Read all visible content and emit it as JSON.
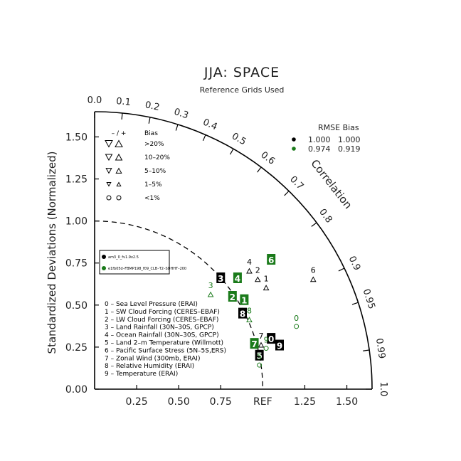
{
  "chart_data": {
    "type": "scatter",
    "title": "JJA: SPACE",
    "subtitle": "Reference Grids Used",
    "ylabel": "Standardized Deviations (Normalized)",
    "correlation_label": "Correlation",
    "ref_label": "REF",
    "x_ticks": [
      "0.25",
      "0.50",
      "0.75",
      "1.25",
      "1.50"
    ],
    "x_tick_values": [
      0.25,
      0.5,
      0.75,
      1.25,
      1.5
    ],
    "y_ticks": [
      "0.00",
      "0.25",
      "0.50",
      "0.75",
      "1.00",
      "1.25",
      "1.50"
    ],
    "y_tick_values": [
      0,
      0.25,
      0.5,
      0.75,
      1.0,
      1.25,
      1.5
    ],
    "corr_ticks": [
      "0.0",
      "0.1",
      "0.2",
      "0.3",
      "0.4",
      "0.5",
      "0.6",
      "0.7",
      "0.8",
      "0.9",
      "0.95",
      "0.99",
      "1.0"
    ],
    "corr_tick_values": [
      0,
      0.1,
      0.2,
      0.3,
      0.4,
      0.5,
      0.6,
      0.7,
      0.8,
      0.9,
      0.95,
      0.99,
      1.0
    ],
    "max_std": 1.65,
    "rmse_bias": {
      "header": "RMSE  Bias",
      "rows": [
        {
          "rmse": "1.000",
          "bias": "1.000",
          "color": "#000000"
        },
        {
          "rmse": "0.974",
          "bias": "0.919",
          "color": "#1a7a1a"
        }
      ]
    },
    "bias_legend": {
      "header_sign": "– / +",
      "header_label": "Bias",
      "rows": [
        ">20%",
        "10–20%",
        "5–10%",
        "1–5%",
        "<1%"
      ]
    },
    "models": [
      {
        "name": "am3_0_fv1.9x2.5",
        "color": "#000000"
      },
      {
        "name": "e1fb05d–FBMP198_f09_CLB–T2–SDHHT–200",
        "color": "#1a7a1a"
      }
    ],
    "variables": [
      "0 – Sea Level Pressure (ERAI)",
      "1 – SW Cloud Forcing (CERES–EBAF)",
      "2 – LW Cloud Forcing (CERES–EBAF)",
      "3 – Land Rainfall (30N–30S, GPCP)",
      "4 – Ocean Rainfall (30N–30S, GPCP)",
      "5 – Land 2–m Temperature (Willmott)",
      "6 – Pacific Surface Stress (5N–5S,ERS)",
      "7 – Zonal Wind (300mb, ERAI)",
      "8 – Relative Humidity (ERAI)",
      "9 – Temperature (ERAI)"
    ],
    "series": [
      {
        "name": "am3_0_fv1.9x2.5",
        "color": "#000000",
        "points": [
          {
            "id": "0",
            "x": 1.05,
            "y": 0.3,
            "marker": "box"
          },
          {
            "id": "1",
            "x": 1.02,
            "y": 0.62,
            "marker": "tri"
          },
          {
            "id": "2",
            "x": 0.97,
            "y": 0.67,
            "marker": "tri"
          },
          {
            "id": "3",
            "x": 0.75,
            "y": 0.66,
            "marker": "box"
          },
          {
            "id": "4",
            "x": 0.92,
            "y": 0.72,
            "marker": "tri"
          },
          {
            "id": "5",
            "x": 0.98,
            "y": 0.2,
            "marker": "box"
          },
          {
            "id": "6",
            "x": 1.3,
            "y": 0.67,
            "marker": "tri"
          },
          {
            "id": "7",
            "x": 0.99,
            "y": 0.28,
            "marker": "tri"
          },
          {
            "id": "8",
            "x": 0.88,
            "y": 0.45,
            "marker": "box"
          },
          {
            "id": "9",
            "x": 1.1,
            "y": 0.26,
            "marker": "box"
          }
        ]
      },
      {
        "name": "e1fb05d–FBMP198_f09_CLB–T2–SDHHT–200",
        "color": "#1a7a1a",
        "points": [
          {
            "id": "0",
            "x": 1.2,
            "y": 0.39,
            "marker": "circ"
          },
          {
            "id": "1",
            "x": 0.89,
            "y": 0.53,
            "marker": "box"
          },
          {
            "id": "2",
            "x": 0.82,
            "y": 0.55,
            "marker": "box"
          },
          {
            "id": "3",
            "x": 0.69,
            "y": 0.58,
            "marker": "tri"
          },
          {
            "id": "4",
            "x": 0.85,
            "y": 0.66,
            "marker": "box"
          },
          {
            "id": "5",
            "x": 0.98,
            "y": 0.16,
            "marker": "circ"
          },
          {
            "id": "6",
            "x": 1.05,
            "y": 0.77,
            "marker": "box"
          },
          {
            "id": "7",
            "x": 0.95,
            "y": 0.27,
            "marker": "box"
          },
          {
            "id": "8",
            "x": 0.92,
            "y": 0.43,
            "marker": "tri"
          },
          {
            "id": "9",
            "x": 1.02,
            "y": 0.26,
            "marker": "circ"
          }
        ]
      }
    ]
  }
}
